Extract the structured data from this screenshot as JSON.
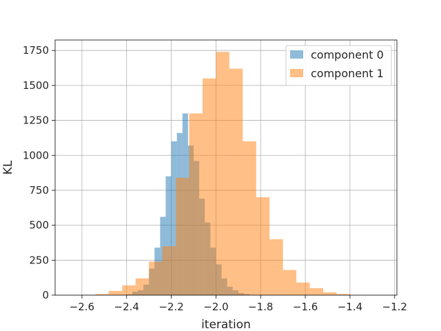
{
  "chart_data": {
    "type": "bar",
    "xlabel": "iteration",
    "ylabel": "KL",
    "xlim": [
      -2.72,
      -1.19
    ],
    "ylim": [
      0,
      1825
    ],
    "grid": true,
    "legend_position": "top-right",
    "x_ticks": [
      -2.6,
      -2.4,
      -2.2,
      -2.0,
      -1.8,
      -1.6,
      -1.4,
      -1.2
    ],
    "x_tick_labels": [
      "−2.6",
      "−2.4",
      "−2.2",
      "−2.0",
      "−1.8",
      "−1.6",
      "−1.4",
      "−1.2"
    ],
    "y_ticks": [
      0,
      250,
      500,
      750,
      1000,
      1250,
      1500,
      1750
    ],
    "y_tick_labels": [
      "0",
      "250",
      "500",
      "750",
      "1000",
      "1250",
      "1500",
      "1750"
    ],
    "series": [
      {
        "name": "component 0",
        "color": "#1f77b4",
        "opacity": 0.5,
        "bin_edges": [
          -2.4,
          -2.375,
          -2.35,
          -2.325,
          -2.3,
          -2.275,
          -2.25,
          -2.225,
          -2.2,
          -2.175,
          -2.15,
          -2.125,
          -2.1,
          -2.075,
          -2.05,
          -2.025,
          -2.0,
          -1.975,
          -1.95,
          -1.925,
          -1.9,
          -1.875,
          -1.85
        ],
        "counts": [
          5,
          25,
          35,
          75,
          190,
          340,
          560,
          850,
          1100,
          1160,
          1300,
          1070,
          960,
          690,
          520,
          340,
          220,
          120,
          60,
          35,
          15,
          8
        ]
      },
      {
        "name": "component 1",
        "color": "#ff7f0e",
        "opacity": 0.5,
        "bin_edges": [
          -2.54,
          -2.48,
          -2.42,
          -2.36,
          -2.3,
          -2.24,
          -2.18,
          -2.12,
          -2.06,
          -2.0,
          -1.94,
          -1.88,
          -1.82,
          -1.76,
          -1.7,
          -1.64,
          -1.58,
          -1.52,
          -1.46,
          -1.4
        ],
        "counts": [
          8,
          30,
          70,
          120,
          240,
          350,
          840,
          1300,
          1550,
          1740,
          1620,
          1100,
          700,
          400,
          180,
          90,
          50,
          20,
          8
        ]
      }
    ]
  }
}
